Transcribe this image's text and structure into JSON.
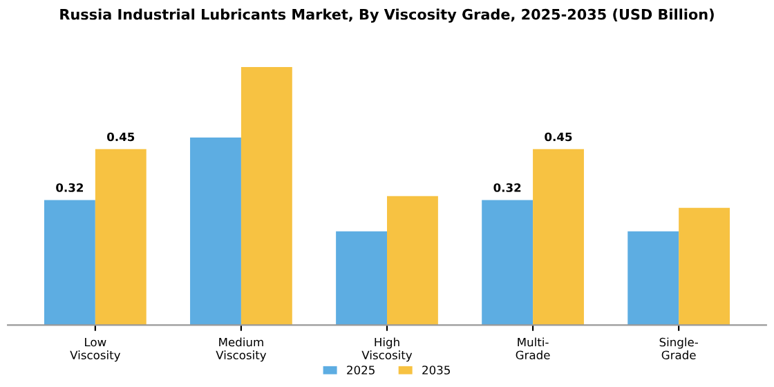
{
  "chart_data": {
    "type": "bar",
    "title": "Russia Industrial Lubricants Market, By Viscosity Grade, 2025-2035 (USD Billion)",
    "categories": [
      "Low\nViscosity",
      "Medium\nViscosity",
      "High\nViscosity",
      "Multi-\nGrade",
      "Single-\nGrade"
    ],
    "series": [
      {
        "name": "2025",
        "color": "#5dade2",
        "values": [
          0.32,
          0.48,
          0.24,
          0.32,
          0.24
        ],
        "value_labels": [
          "0.32",
          null,
          null,
          "0.32",
          null
        ]
      },
      {
        "name": "2035",
        "color": "#f7c242",
        "values": [
          0.45,
          0.66,
          0.33,
          0.45,
          0.3
        ],
        "value_labels": [
          "0.45",
          null,
          null,
          "0.45",
          null
        ]
      }
    ],
    "tick_labels": "x",
    "grid": false,
    "legend": "bottom"
  }
}
